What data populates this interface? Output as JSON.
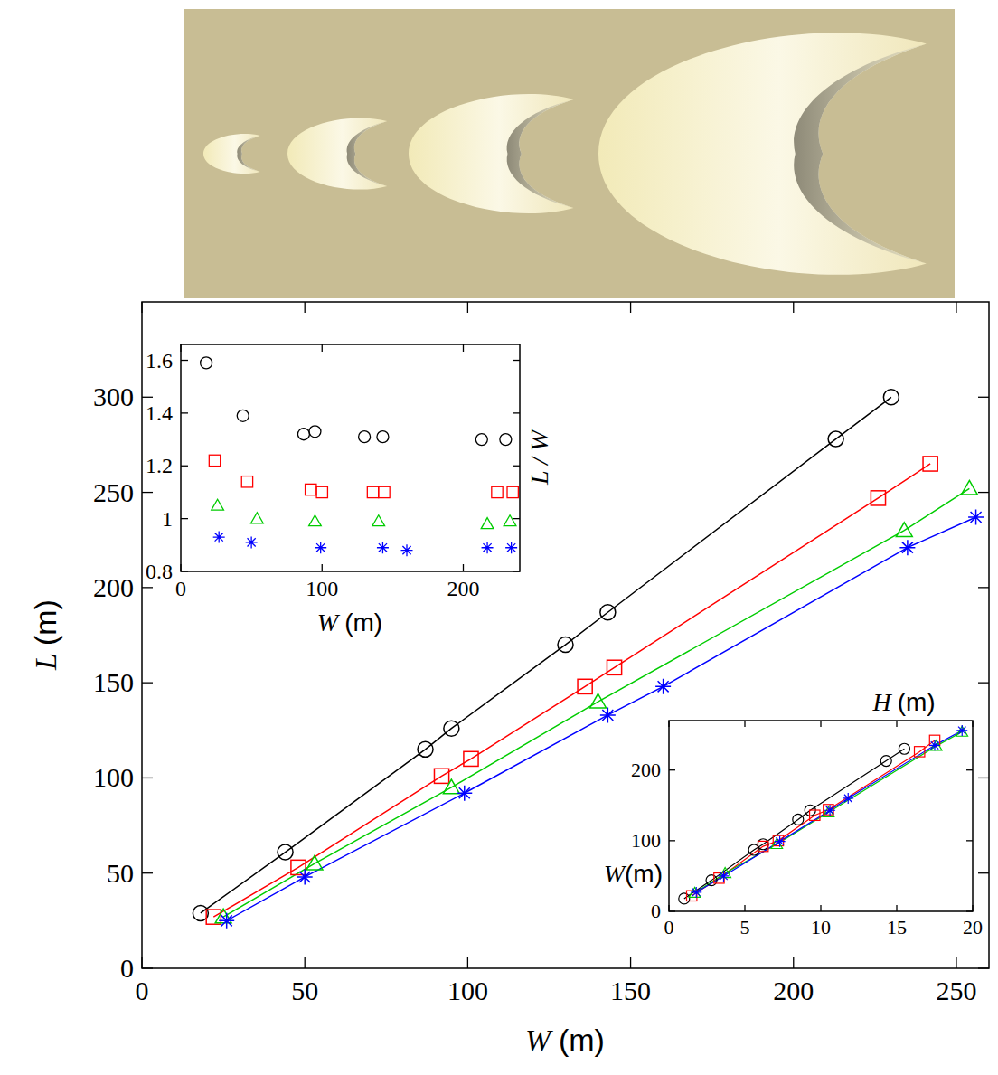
{
  "chart_data": [
    {
      "type": "line",
      "x_label": "W (m)",
      "y_label": "L (m)",
      "xlim": [
        0,
        260
      ],
      "ylim": [
        0,
        350
      ],
      "xticks": [
        0,
        50,
        100,
        150,
        200,
        250
      ],
      "yticks": [
        0,
        50,
        100,
        150,
        200,
        250,
        300
      ],
      "series": [
        {
          "color": "#000000",
          "marker": "circle",
          "x": [
            18,
            44,
            87,
            95,
            130,
            143,
            213,
            230
          ],
          "values": [
            29,
            61,
            115,
            126,
            170,
            187,
            278,
            300
          ]
        },
        {
          "color": "#ff0000",
          "marker": "square",
          "x": [
            22,
            48,
            92,
            101,
            136,
            145,
            226,
            242
          ],
          "values": [
            27,
            53,
            101,
            110,
            148,
            158,
            247,
            265
          ]
        },
        {
          "color": "#00cc00",
          "marker": "triangle",
          "x": [
            25,
            53,
            95,
            140,
            234,
            254
          ],
          "values": [
            27,
            55,
            95,
            140,
            230,
            252
          ]
        },
        {
          "color": "#0000ff",
          "marker": "star",
          "x": [
            26,
            50,
            99,
            143,
            160,
            235,
            256
          ],
          "values": [
            25,
            48,
            92,
            133,
            148,
            221,
            237
          ]
        }
      ]
    },
    {
      "type": "scatter",
      "x_label": "W (m)",
      "y_label": "L / W",
      "xlim": [
        0,
        240
      ],
      "ylim": [
        0.8,
        1.66
      ],
      "xticks": [
        0,
        100,
        200
      ],
      "yticks": [
        0.8,
        1,
        1.2,
        1.4,
        1.6
      ],
      "series": [
        {
          "color": "#000000",
          "marker": "circle",
          "x": [
            18,
            44,
            87,
            95,
            130,
            143,
            213,
            230
          ],
          "values": [
            1.59,
            1.39,
            1.32,
            1.33,
            1.31,
            1.31,
            1.3,
            1.3
          ]
        },
        {
          "color": "#ff0000",
          "marker": "square",
          "x": [
            24,
            47,
            92,
            100,
            136,
            144,
            224,
            235
          ],
          "values": [
            1.22,
            1.14,
            1.11,
            1.1,
            1.1,
            1.1,
            1.1,
            1.1
          ]
        },
        {
          "color": "#00cc00",
          "marker": "triangle",
          "x": [
            26,
            54,
            95,
            140,
            217,
            233
          ],
          "values": [
            1.05,
            1.0,
            0.99,
            0.99,
            0.98,
            0.99
          ]
        },
        {
          "color": "#0000ff",
          "marker": "star",
          "x": [
            27,
            50,
            99,
            143,
            160,
            217,
            234
          ],
          "values": [
            0.93,
            0.91,
            0.89,
            0.89,
            0.88,
            0.89,
            0.89
          ]
        }
      ]
    },
    {
      "type": "line",
      "x_label": "H (m)",
      "y_label": "W(m)",
      "xlim": [
        0,
        20
      ],
      "ylim": [
        0,
        270
      ],
      "xticks": [
        0,
        5,
        10,
        15,
        20
      ],
      "yticks": [
        0,
        100,
        200
      ],
      "series": [
        {
          "color": "#000000",
          "marker": "circle",
          "x": [
            1,
            2.8,
            5.6,
            6.2,
            8.5,
            9.3,
            14.3,
            15.5
          ],
          "values": [
            18,
            44,
            87,
            95,
            130,
            143,
            213,
            230
          ]
        },
        {
          "color": "#ff0000",
          "marker": "square",
          "x": [
            1.5,
            3.3,
            6.2,
            7.2,
            9.6,
            10.5,
            16.5,
            17.5
          ],
          "values": [
            22,
            47,
            92,
            100,
            136,
            144,
            226,
            242
          ]
        },
        {
          "color": "#00cc00",
          "marker": "triangle",
          "x": [
            1.7,
            3.7,
            7.1,
            10.5,
            17.6,
            19.3
          ],
          "values": [
            26,
            54,
            95,
            140,
            234,
            254
          ]
        },
        {
          "color": "#0000ff",
          "marker": "star",
          "x": [
            1.8,
            3.6,
            7.3,
            10.6,
            11.8,
            17.5,
            19.3
          ],
          "values": [
            27,
            50,
            99,
            143,
            160,
            235,
            256
          ]
        }
      ]
    }
  ]
}
